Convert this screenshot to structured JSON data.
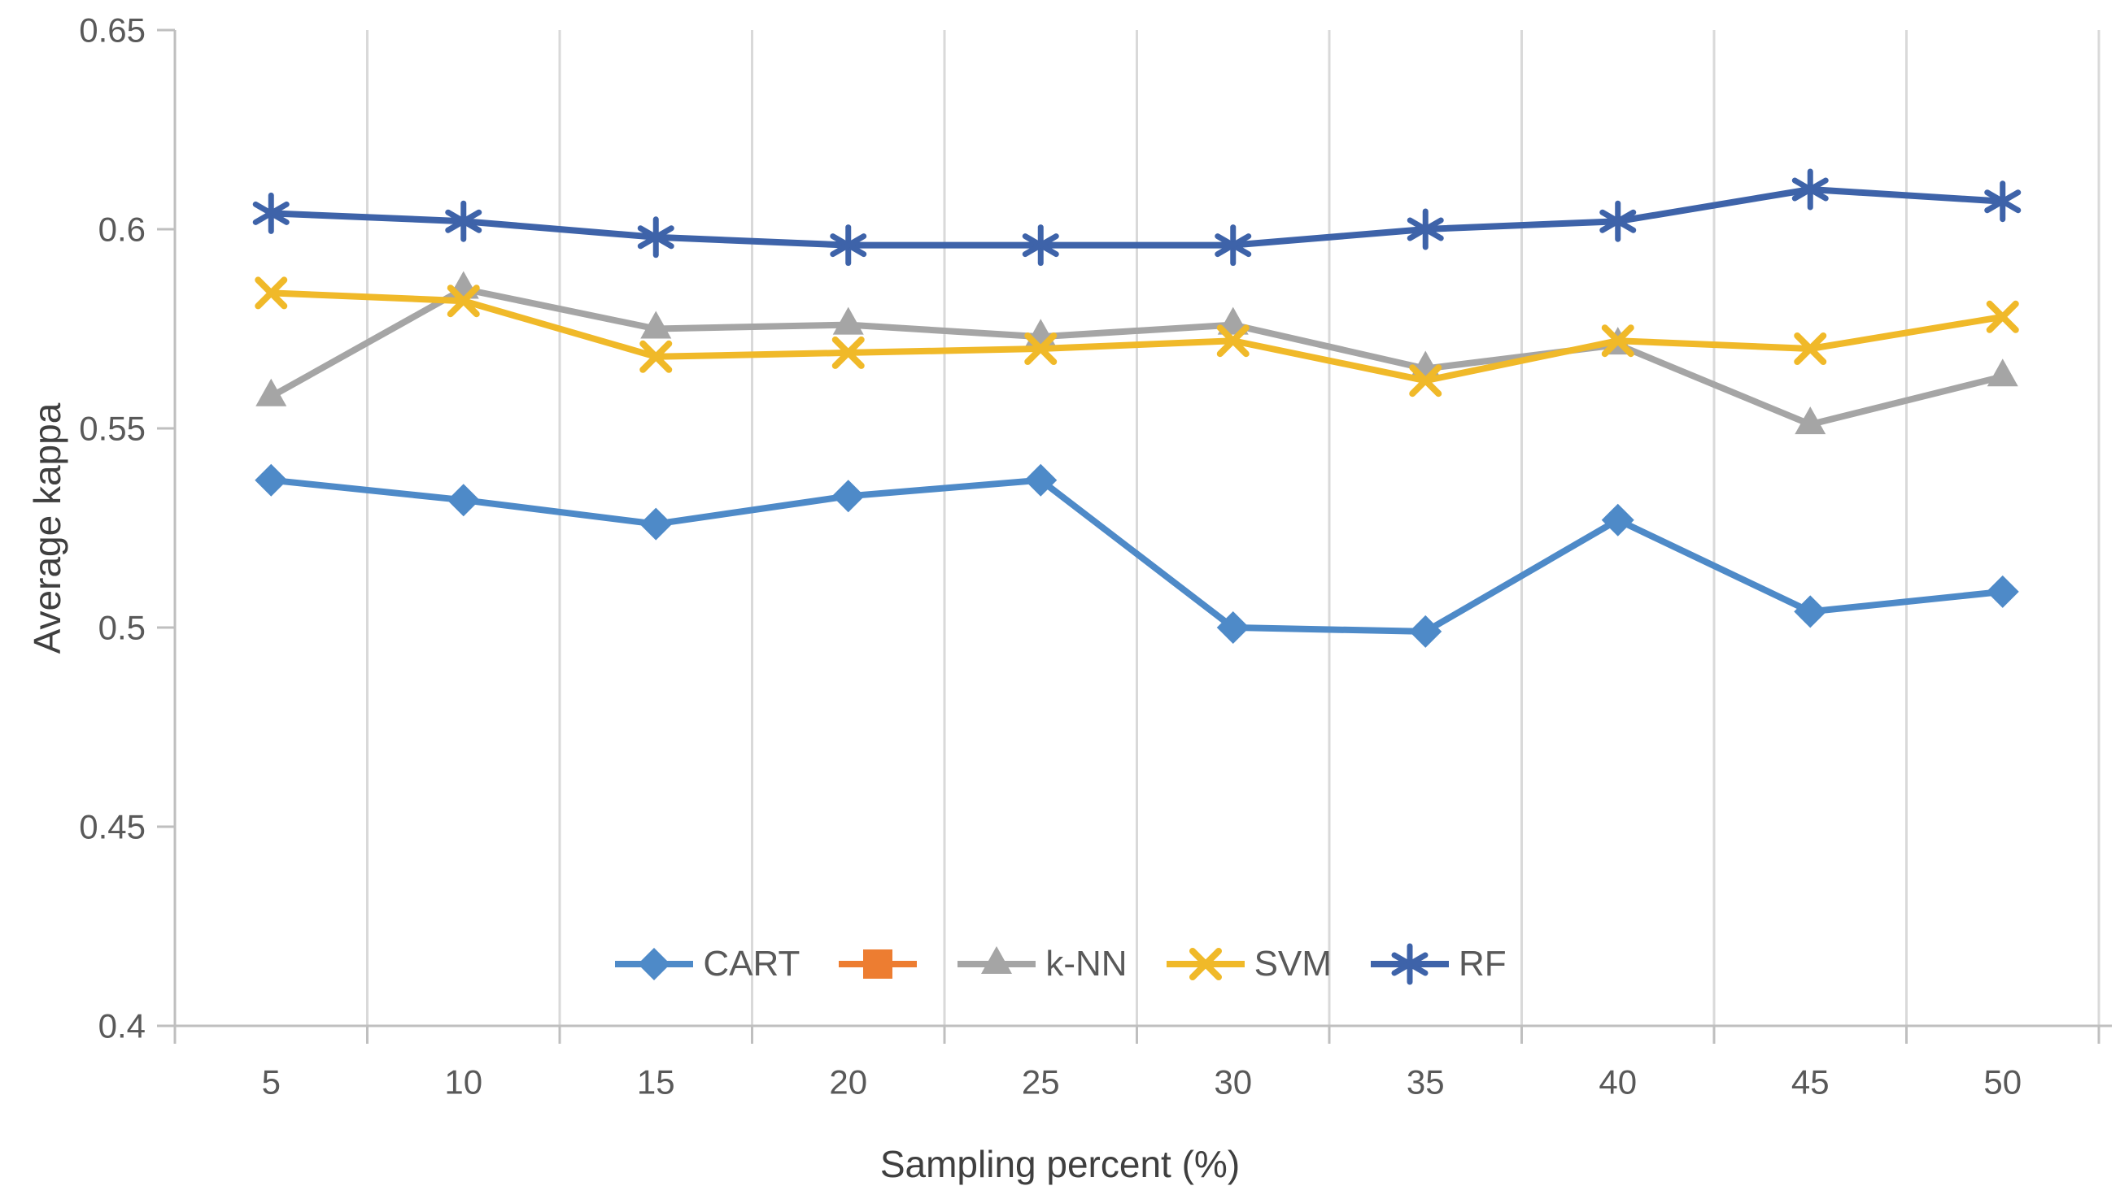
{
  "chart_data": {
    "type": "line",
    "title": "",
    "xlabel": "Sampling percent (%)",
    "ylabel": "Average kappa",
    "x": [
      5,
      10,
      15,
      20,
      25,
      30,
      35,
      40,
      45,
      50
    ],
    "xtick_labels": [
      "5",
      "10",
      "15",
      "20",
      "25",
      "30",
      "35",
      "40",
      "45",
      "50"
    ],
    "ylim": [
      0.4,
      0.65
    ],
    "yticks": [
      0.4,
      0.45,
      0.5,
      0.55,
      0.6,
      0.65
    ],
    "ytick_labels": [
      "0.4",
      "0.45",
      "0.5",
      "0.55",
      "0.6",
      "0.65"
    ],
    "grid": "vertical-between-categories-only",
    "legend_position": "bottom-center",
    "series": [
      {
        "name": "CART",
        "marker": "diamond",
        "color": "#4E8AC8",
        "values": [
          0.537,
          0.532,
          0.526,
          0.533,
          0.537,
          0.5,
          0.499,
          0.527,
          0.504,
          0.509
        ]
      },
      {
        "name": "",
        "marker": "square",
        "color": "#ED7D31",
        "values": []
      },
      {
        "name": "k-NN",
        "marker": "triangle",
        "color": "#A5A5A5",
        "values": [
          0.558,
          0.585,
          0.575,
          0.576,
          0.573,
          0.576,
          0.565,
          0.571,
          0.551,
          0.563
        ]
      },
      {
        "name": "SVM",
        "marker": "x",
        "color": "#F0B929",
        "values": [
          0.584,
          0.582,
          0.568,
          0.569,
          0.57,
          0.572,
          0.562,
          0.572,
          0.57,
          0.578
        ]
      },
      {
        "name": "RF",
        "marker": "asterisk",
        "color": "#3E63A9",
        "values": [
          0.604,
          0.602,
          0.598,
          0.596,
          0.596,
          0.596,
          0.6,
          0.602,
          0.61,
          0.607
        ]
      }
    ]
  }
}
